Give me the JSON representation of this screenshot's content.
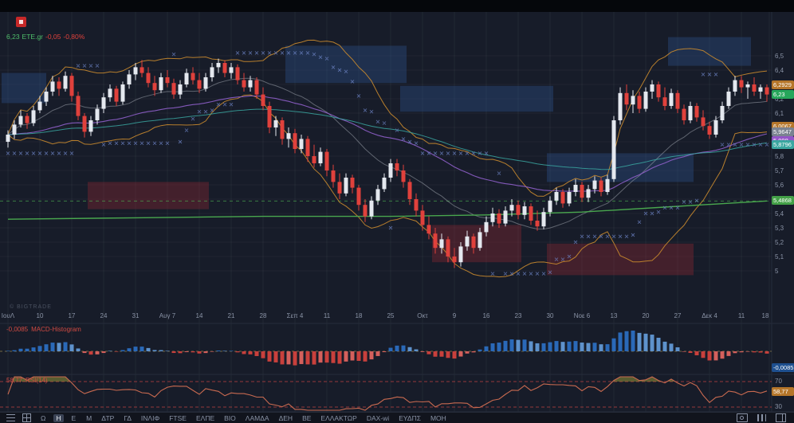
{
  "legend": {
    "price": "6,23",
    "symbol": "ETE.gr",
    "change": "-0,05",
    "change_pct": "-0,80%"
  },
  "watermark": "© BIGTRADE",
  "macd": {
    "value": "-0,0085",
    "label": "MACD-Histogram"
  },
  "rsi": {
    "value": "58,77",
    "label": "RSI(14)"
  },
  "colors": {
    "up_candle": "#e4e8ef",
    "down_candle": "#e0413c",
    "macd_pos": "#2a69b8",
    "macd_pos_weak": "#5e92cc",
    "macd_neg": "#c8403c",
    "macd_neg_weak": "#d4605c",
    "bollinger": "#c98a2d",
    "ema_mid": "#8e5fc9",
    "ema_long": "#3aa6a0",
    "ma_green": "#4caf50",
    "sar": "#6f86c9",
    "rsi_line": "#c96a50",
    "supply_zone": "rgba(45,82,140,0.38)",
    "demand_zone": "rgba(150,40,52,0.35)",
    "grid": "rgba(255,255,255,0.05)",
    "axis_text": "#8a93a6",
    "pane_bg": "#171c29",
    "separator": "#262c3a"
  },
  "price_axis": {
    "ticks": [
      [
        "6,5",
        6.5
      ],
      [
        "6,4",
        6.4
      ],
      [
        "6,3",
        6.3
      ],
      [
        "6,2",
        6.2
      ],
      [
        "6,1",
        6.1
      ],
      [
        "6",
        6.0
      ],
      [
        "5,9",
        5.9
      ],
      [
        "5,8",
        5.8
      ],
      [
        "5,7",
        5.7
      ],
      [
        "5,6",
        5.6
      ],
      [
        "5,5",
        5.5
      ],
      [
        "5,4",
        5.4
      ],
      [
        "5,3",
        5.3
      ],
      [
        "5,2",
        5.2
      ],
      [
        "5,1",
        5.1
      ],
      [
        "5",
        5.0
      ]
    ],
    "badges": [
      {
        "t": "6,2929",
        "c": "#b5762a",
        "p": 6.2929
      },
      {
        "t": "6,23",
        "c": "#26a65b",
        "p": 6.23
      },
      {
        "t": "6,0067",
        "c": "#b5762a",
        "p": 6.0067
      },
      {
        "t": "5,9647",
        "c": "#7a8290",
        "p": 5.9647
      },
      {
        "t": "5,908",
        "c": "#9455c8",
        "p": 5.908
      },
      {
        "t": "5,8796",
        "c": "#3aa6a0",
        "p": 5.8796
      },
      {
        "t": "5,4868",
        "c": "#43a047",
        "p": 5.4868
      }
    ],
    "macd_badge": {
      "t": "-0,0085",
      "c": "#1e4f8f",
      "y": 456
    },
    "rsi_badge": {
      "t": "58,77",
      "c": "#b5762a",
      "y": 486
    },
    "rsi_ticks": [
      {
        "t": "70",
        "y": 474
      },
      {
        "t": "30",
        "y": 506
      }
    ]
  },
  "time_axis": {
    "labels": [
      [
        0,
        "ΙουΛ"
      ],
      [
        5,
        "10"
      ],
      [
        10,
        "17"
      ],
      [
        15,
        "24"
      ],
      [
        20,
        "31"
      ],
      [
        25,
        "Αυγ 7"
      ],
      [
        30,
        "14"
      ],
      [
        35,
        "21"
      ],
      [
        40,
        "28"
      ],
      [
        45,
        "Σεπ 4"
      ],
      [
        50,
        "11"
      ],
      [
        55,
        "18"
      ],
      [
        60,
        "25"
      ],
      [
        65,
        "Οκτ"
      ],
      [
        70,
        "9"
      ],
      [
        75,
        "16"
      ],
      [
        80,
        "23"
      ],
      [
        85,
        "30"
      ],
      [
        90,
        "Νοε 6"
      ],
      [
        95,
        "13"
      ],
      [
        100,
        "20"
      ],
      [
        105,
        "27"
      ],
      [
        110,
        "Δεκ 4"
      ],
      [
        115,
        "11"
      ],
      [
        120,
        "18"
      ]
    ]
  },
  "toolbar": {
    "timeframes": [
      "Ω",
      "Η",
      "Ε",
      "Μ"
    ],
    "active_timeframe": "Η",
    "tickers": [
      "ΔΤΡ",
      "ΓΔ",
      "ΙΝΛΙΦ",
      "FTSE",
      "ΕΛΠΕ",
      "ΒΙΟ",
      "ΛΑΜΔΑ",
      "ΔΕΗ",
      "ΒΕ",
      "ΕΛΛΑΚΤΩΡ",
      "DAX-wi",
      "ΕΥΔΠΣ",
      "ΜΟΗ"
    ]
  },
  "chart_data": {
    "type": "candlestick",
    "symbol": "ETE.gr",
    "timeframe": "Η",
    "last_price": 6.23,
    "change": -0.05,
    "change_pct": -0.8,
    "ylim": [
      4.72,
      6.8
    ],
    "x_range": "ΙουΛ - Δεκ",
    "ohlc": [
      [
        5.9,
        5.98,
        5.86,
        5.95
      ],
      [
        5.95,
        6.05,
        5.92,
        6.02
      ],
      [
        6.02,
        6.12,
        6.0,
        6.08
      ],
      [
        6.08,
        6.1,
        5.99,
        6.03
      ],
      [
        6.03,
        6.15,
        6.01,
        6.12
      ],
      [
        6.12,
        6.22,
        6.1,
        6.18
      ],
      [
        6.18,
        6.28,
        6.15,
        6.25
      ],
      [
        6.25,
        6.36,
        6.22,
        6.32
      ],
      [
        6.32,
        6.35,
        6.22,
        6.27
      ],
      [
        6.27,
        6.39,
        6.25,
        6.36
      ],
      [
        6.36,
        6.38,
        6.18,
        6.22
      ],
      [
        6.22,
        6.25,
        6.05,
        6.08
      ],
      [
        6.08,
        6.1,
        5.93,
        5.97
      ],
      [
        5.97,
        6.08,
        5.94,
        6.05
      ],
      [
        6.05,
        6.16,
        6.02,
        6.13
      ],
      [
        6.13,
        6.24,
        6.1,
        6.21
      ],
      [
        6.21,
        6.3,
        6.18,
        6.27
      ],
      [
        6.27,
        6.29,
        6.15,
        6.18
      ],
      [
        6.18,
        6.32,
        6.16,
        6.3
      ],
      [
        6.3,
        6.4,
        6.27,
        6.37
      ],
      [
        6.37,
        6.45,
        6.33,
        6.42
      ],
      [
        6.42,
        6.47,
        6.35,
        6.38
      ],
      [
        6.38,
        6.42,
        6.28,
        6.31
      ],
      [
        6.31,
        6.36,
        6.22,
        6.26
      ],
      [
        6.26,
        6.38,
        6.24,
        6.35
      ],
      [
        6.35,
        6.4,
        6.28,
        6.31
      ],
      [
        6.31,
        6.34,
        6.2,
        6.23
      ],
      [
        6.23,
        6.33,
        6.2,
        6.3
      ],
      [
        6.3,
        6.41,
        6.28,
        6.38
      ],
      [
        6.38,
        6.42,
        6.3,
        6.33
      ],
      [
        6.33,
        6.38,
        6.24,
        6.27
      ],
      [
        6.27,
        6.38,
        6.25,
        6.35
      ],
      [
        6.35,
        6.45,
        6.32,
        6.42
      ],
      [
        6.42,
        6.48,
        6.38,
        6.45
      ],
      [
        6.45,
        6.47,
        6.35,
        6.38
      ],
      [
        6.38,
        6.45,
        6.34,
        6.42
      ],
      [
        6.42,
        6.44,
        6.3,
        6.33
      ],
      [
        6.33,
        6.38,
        6.25,
        6.28
      ],
      [
        6.28,
        6.36,
        6.25,
        6.33
      ],
      [
        6.33,
        6.35,
        6.2,
        6.23
      ],
      [
        6.23,
        6.28,
        6.12,
        6.15
      ],
      [
        6.15,
        6.18,
        5.96,
        6.0
      ],
      [
        6.0,
        6.08,
        5.94,
        6.05
      ],
      [
        6.05,
        6.07,
        5.88,
        5.92
      ],
      [
        5.92,
        6.0,
        5.86,
        5.96
      ],
      [
        5.96,
        5.99,
        5.82,
        5.85
      ],
      [
        5.85,
        5.95,
        5.82,
        5.92
      ],
      [
        5.92,
        5.94,
        5.76,
        5.8
      ],
      [
        5.8,
        5.88,
        5.72,
        5.75
      ],
      [
        5.75,
        5.86,
        5.73,
        5.83
      ],
      [
        5.83,
        5.85,
        5.66,
        5.7
      ],
      [
        5.7,
        5.74,
        5.58,
        5.62
      ],
      [
        5.62,
        5.68,
        5.5,
        5.54
      ],
      [
        5.54,
        5.68,
        5.52,
        5.65
      ],
      [
        5.65,
        5.67,
        5.54,
        5.58
      ],
      [
        5.58,
        5.6,
        5.42,
        5.46
      ],
      [
        5.46,
        5.5,
        5.34,
        5.38
      ],
      [
        5.38,
        5.52,
        5.36,
        5.49
      ],
      [
        5.49,
        5.6,
        5.46,
        5.57
      ],
      [
        5.57,
        5.68,
        5.55,
        5.65
      ],
      [
        5.65,
        5.78,
        5.62,
        5.75
      ],
      [
        5.75,
        5.78,
        5.66,
        5.7
      ],
      [
        5.7,
        5.74,
        5.58,
        5.62
      ],
      [
        5.62,
        5.64,
        5.46,
        5.5
      ],
      [
        5.5,
        5.54,
        5.38,
        5.42
      ],
      [
        5.42,
        5.46,
        5.28,
        5.32
      ],
      [
        5.32,
        5.38,
        5.22,
        5.26
      ],
      [
        5.26,
        5.3,
        5.12,
        5.16
      ],
      [
        5.16,
        5.26,
        5.12,
        5.22
      ],
      [
        5.22,
        5.24,
        5.06,
        5.1
      ],
      [
        5.1,
        5.16,
        5.02,
        5.06
      ],
      [
        5.06,
        5.2,
        5.03,
        5.17
      ],
      [
        5.17,
        5.28,
        5.14,
        5.24
      ],
      [
        5.24,
        5.26,
        5.12,
        5.16
      ],
      [
        5.16,
        5.3,
        5.14,
        5.27
      ],
      [
        5.27,
        5.38,
        5.24,
        5.34
      ],
      [
        5.34,
        5.44,
        5.31,
        5.4
      ],
      [
        5.4,
        5.43,
        5.3,
        5.33
      ],
      [
        5.33,
        5.45,
        5.31,
        5.42
      ],
      [
        5.42,
        5.5,
        5.38,
        5.46
      ],
      [
        5.46,
        5.49,
        5.36,
        5.39
      ],
      [
        5.39,
        5.48,
        5.36,
        5.45
      ],
      [
        5.45,
        5.47,
        5.32,
        5.35
      ],
      [
        5.35,
        5.42,
        5.28,
        5.31
      ],
      [
        5.31,
        5.44,
        5.29,
        5.41
      ],
      [
        5.41,
        5.52,
        5.38,
        5.49
      ],
      [
        5.49,
        5.58,
        5.46,
        5.55
      ],
      [
        5.55,
        5.57,
        5.44,
        5.47
      ],
      [
        5.47,
        5.58,
        5.45,
        5.55
      ],
      [
        5.55,
        5.64,
        5.52,
        5.6
      ],
      [
        5.6,
        5.62,
        5.48,
        5.51
      ],
      [
        5.51,
        5.6,
        5.48,
        5.57
      ],
      [
        5.57,
        5.66,
        5.54,
        5.63
      ],
      [
        5.63,
        5.65,
        5.52,
        5.55
      ],
      [
        5.55,
        5.67,
        5.53,
        5.64
      ],
      [
        5.64,
        6.08,
        5.62,
        6.05
      ],
      [
        6.05,
        6.28,
        6.02,
        6.24
      ],
      [
        6.24,
        6.3,
        6.12,
        6.16
      ],
      [
        6.16,
        6.26,
        6.1,
        6.22
      ],
      [
        6.22,
        6.25,
        6.1,
        6.13
      ],
      [
        6.13,
        6.28,
        6.11,
        6.25
      ],
      [
        6.25,
        6.33,
        6.2,
        6.3
      ],
      [
        6.3,
        6.32,
        6.18,
        6.21
      ],
      [
        6.21,
        6.28,
        6.12,
        6.15
      ],
      [
        6.15,
        6.27,
        6.13,
        6.24
      ],
      [
        6.24,
        6.26,
        6.1,
        6.13
      ],
      [
        6.13,
        6.16,
        6.02,
        6.05
      ],
      [
        6.05,
        6.18,
        6.03,
        6.15
      ],
      [
        6.15,
        6.17,
        6.04,
        6.07
      ],
      [
        6.07,
        6.12,
        5.98,
        6.01
      ],
      [
        6.01,
        6.04,
        5.92,
        5.95
      ],
      [
        5.95,
        6.08,
        5.93,
        6.05
      ],
      [
        6.05,
        6.18,
        6.03,
        6.15
      ],
      [
        6.15,
        6.28,
        6.13,
        6.25
      ],
      [
        6.25,
        6.36,
        6.22,
        6.33
      ],
      [
        6.33,
        6.36,
        6.24,
        6.28
      ],
      [
        6.28,
        6.32,
        6.2,
        6.3
      ],
      [
        6.3,
        6.35,
        6.22,
        6.25
      ],
      [
        6.25,
        6.3,
        6.2,
        6.28
      ],
      [
        6.28,
        6.3,
        6.18,
        6.23
      ]
    ],
    "zones": [
      {
        "i0": -0.5,
        "i1": 5.5,
        "p0": 6.17,
        "p1": 6.38,
        "kind": "supply"
      },
      {
        "i0": 44,
        "i1": 62,
        "p0": 6.31,
        "p1": 6.57,
        "kind": "supply"
      },
      {
        "i0": 62,
        "i1": 85,
        "p0": 6.11,
        "p1": 6.29,
        "kind": "supply"
      },
      {
        "i0": 85,
        "i1": 107,
        "p0": 5.62,
        "p1": 5.82,
        "kind": "supply"
      },
      {
        "i0": 104,
        "i1": 116,
        "p0": 6.43,
        "p1": 6.63,
        "kind": "supply"
      },
      {
        "i0": 13,
        "i1": 31,
        "p0": 5.43,
        "p1": 5.62,
        "kind": "demand"
      },
      {
        "i0": 67,
        "i1": 80,
        "p0": 5.06,
        "p1": 5.32,
        "kind": "demand"
      },
      {
        "i0": 85,
        "i1": 107,
        "p0": 4.97,
        "p1": 5.19,
        "kind": "demand"
      }
    ],
    "level_line": {
      "price": 5.4868,
      "style": "dashed",
      "color": "#4caf50"
    },
    "ma_green_points": [
      [
        0,
        5.36
      ],
      [
        20,
        5.37
      ],
      [
        40,
        5.38
      ],
      [
        60,
        5.38
      ],
      [
        75,
        5.39
      ],
      [
        90,
        5.41
      ],
      [
        105,
        5.45
      ],
      [
        119,
        5.487
      ]
    ],
    "indicators": [
      {
        "name": "MACD-Histogram",
        "last_value": -0.0085
      },
      {
        "name": "RSI(14)",
        "last_value": 58.77,
        "levels": [
          70,
          30
        ]
      }
    ]
  }
}
